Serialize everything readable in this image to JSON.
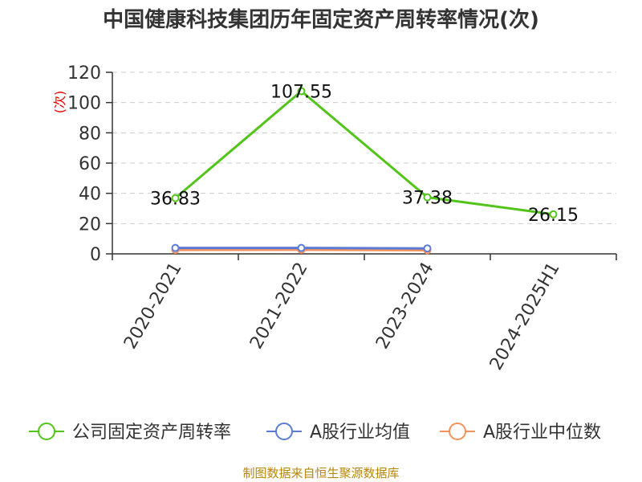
{
  "chart_data": {
    "type": "line",
    "title": "中国健康科技集团历年固定资产周转率情况(次)",
    "ylabel": "(次)",
    "xlabel": "",
    "categories": [
      "2020-2021",
      "2021-2022",
      "2023-2024",
      "2024-2025H1"
    ],
    "ylim": [
      0,
      120
    ],
    "yticks": [
      0,
      20,
      40,
      60,
      80,
      100,
      120
    ],
    "grid": true,
    "legend_position": "bottom",
    "series": [
      {
        "name": "公司固定资产周转率",
        "color": "#52c41a",
        "values": [
          36.83,
          107.55,
          37.38,
          26.15
        ],
        "show_labels": true
      },
      {
        "name": "A股行业均值",
        "color": "#5b7bd5",
        "values": [
          3.9,
          3.9,
          3.6,
          null
        ],
        "show_labels": false
      },
      {
        "name": "A股行业中位数",
        "color": "#f4925c",
        "values": [
          2.6,
          2.7,
          2.4,
          null
        ],
        "show_labels": false
      }
    ]
  },
  "source_text": "制图数据来自恒生聚源数据库"
}
